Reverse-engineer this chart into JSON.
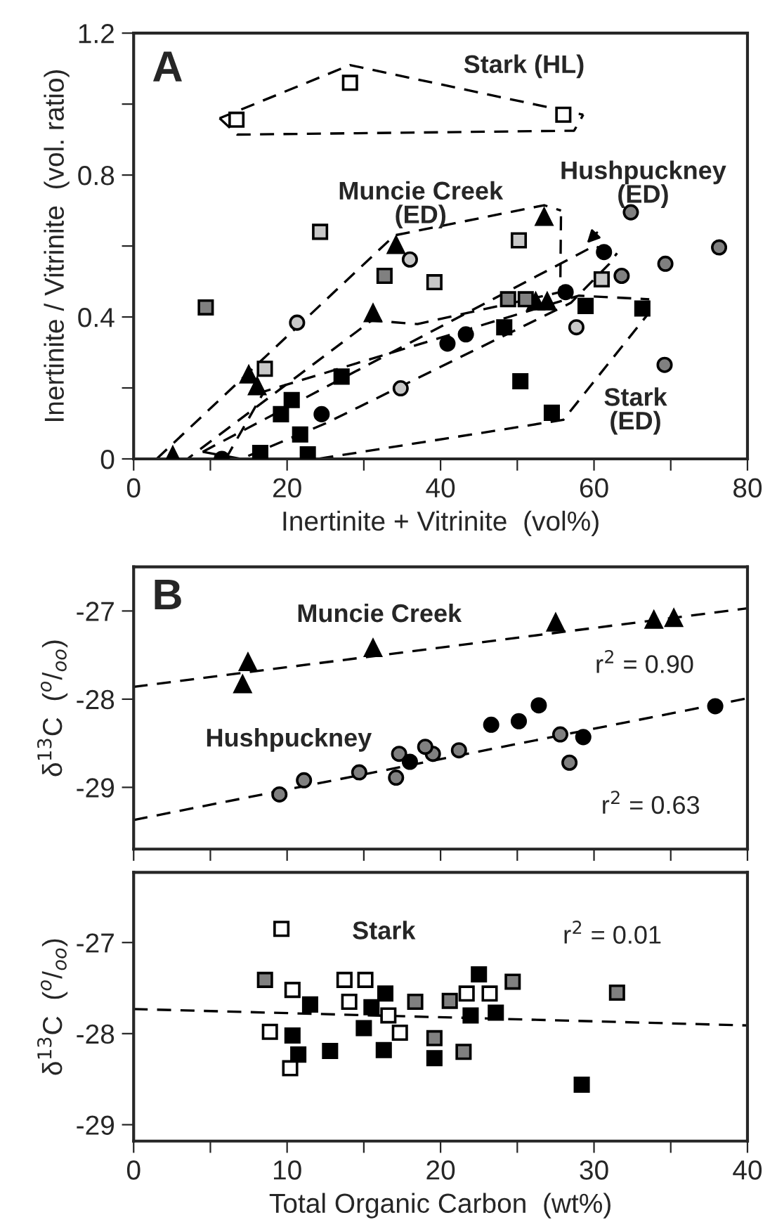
{
  "chart_data": [
    {
      "type": "scatter",
      "title": "A",
      "xlabel": "Inertinite + Vitrinite  (vol%)",
      "ylabel": "Inertinite / Vitrinite  (vol. ratio)",
      "xlim": [
        0,
        80
      ],
      "ylim": [
        0,
        1.2
      ],
      "xticks": [
        0,
        {
          "value": 10,
          "label": null
        },
        20,
        {
          "value": 30,
          "label": null
        },
        40,
        {
          "value": 50,
          "label": null
        },
        60,
        {
          "value": 70,
          "label": null
        },
        80
      ],
      "yticks": [
        0,
        {
          "value": 0.2,
          "label": null
        },
        0.4,
        {
          "value": 0.6,
          "label": null
        },
        0.8,
        {
          "value": 1.0,
          "label": null
        },
        1.2
      ],
      "series": [
        {
          "marker": "square",
          "color": "#ffffff",
          "x": [
            13.4,
            28.2,
            56.0
          ],
          "values": [
            0.956,
            1.06,
            0.97
          ]
        },
        {
          "marker": "square",
          "color": "#808080",
          "x": [
            9.4,
            32.7,
            48.8,
            51.1
          ],
          "values": [
            0.427,
            0.516,
            0.45,
            0.45
          ]
        },
        {
          "marker": "square",
          "color": "#c8c8c8",
          "x": [
            24.3,
            50.2,
            39.2,
            17.1,
            61.0
          ],
          "values": [
            0.64,
            0.616,
            0.498,
            0.254,
            0.506
          ]
        },
        {
          "marker": "circle",
          "color": "#c8c8c8",
          "x": [
            36.0,
            21.3,
            57.7,
            34.8
          ],
          "values": [
            0.562,
            0.384,
            0.371,
            0.199
          ]
        },
        {
          "marker": "triangle",
          "color": "#000000",
          "x": [
            53.5,
            34.2,
            31.2,
            15.0,
            16.1,
            53.9,
            52.4,
            5.1
          ],
          "values": [
            0.682,
            0.603,
            0.411,
            0.238,
            0.205,
            0.444,
            0.444,
            0.01
          ]
        },
        {
          "marker": "circle",
          "color": "#000000",
          "x": [
            61.3,
            56.3,
            40.9,
            43.3,
            24.5,
            11.5
          ],
          "values": [
            0.583,
            0.47,
            0.325,
            0.351,
            0.126,
            0.0
          ]
        },
        {
          "marker": "circle",
          "color": "#808080",
          "x": [
            64.8,
            76.3,
            69.3,
            63.6,
            69.2
          ],
          "values": [
            0.695,
            0.596,
            0.55,
            0.516,
            0.265
          ]
        },
        {
          "marker": "square",
          "color": "#000000",
          "x": [
            58.9,
            66.3,
            48.3,
            50.4,
            27.1,
            20.6,
            19.2,
            21.7,
            22.7,
            16.5,
            54.5
          ],
          "values": [
            0.431,
            0.424,
            0.371,
            0.219,
            0.232,
            0.166,
            0.126,
            0.069,
            0.013,
            0.017,
            0.13
          ]
        },
        {
          "type": "line",
          "line_style": "dashed",
          "color": "#000000",
          "x": [
            11.2,
            28.2,
            58.6
          ],
          "values": [
            0.96,
            1.11,
            0.97
          ]
        },
        {
          "type": "line",
          "line_style": "dashed",
          "color": "#000000",
          "x": [
            11.2,
            13.5,
            57.4,
            58.6
          ],
          "values": [
            0.96,
            0.914,
            0.925,
            0.97
          ]
        },
        {
          "type": "line",
          "line_style": "dashed",
          "color": "#000000",
          "x": [
            3,
            34,
            53.5,
            55.7
          ],
          "values": [
            0.0,
            0.63,
            0.715,
            0.7
          ]
        },
        {
          "type": "line",
          "line_style": "dashed",
          "color": "#000000",
          "x": [
            3,
            7,
            31,
            37,
            55.6,
            55.7
          ],
          "values": [
            0.0,
            0.0,
            0.39,
            0.38,
            0.47,
            0.7
          ]
        },
        {
          "type": "line",
          "line_style": "dashed",
          "color": "#000000",
          "x": [
            9,
            60,
            63
          ],
          "values": [
            0.02,
            0.6,
            0.58
          ]
        },
        {
          "type": "line",
          "line_style": "dashed",
          "color": "#000000",
          "x": [
            9,
            14,
            25,
            57,
            62,
            63
          ],
          "values": [
            0.02,
            0.0,
            0.1,
            0.44,
            0.55,
            0.58
          ]
        },
        {
          "type": "line",
          "line_style": "dashed",
          "color": "#000000",
          "x": [
            12,
            17,
            58,
            67.2
          ],
          "values": [
            0.0,
            0.19,
            0.46,
            0.45
          ]
        },
        {
          "type": "line",
          "line_style": "dashed",
          "color": "#000000",
          "x": [
            12,
            24,
            56,
            67.1,
            67.2
          ],
          "values": [
            0.0,
            0.0,
            0.11,
            0.41,
            0.45
          ]
        }
      ],
      "annotations": [
        "Stark (HL)",
        "Muncie Creek\n(ED)",
        "Hushpuckney\n(ED)",
        "Stark\n(ED)"
      ]
    },
    {
      "type": "scatter",
      "title": "B",
      "ylabel": "δ$^{13}$C  ($^{o}$/$_{oo}$)",
      "xlim": [
        0,
        40
      ],
      "ylim": [
        -29.7,
        -26.5
      ],
      "tick_labels": "y",
      "xticks": [
        0,
        5,
        10,
        15,
        20,
        25,
        30,
        35,
        40
      ],
      "yticks": [
        {
          "value": -27,
          "label": "-27"
        },
        {
          "value": -28,
          "label": "-28"
        },
        {
          "value": -29,
          "label": "-29"
        }
      ],
      "series": [
        {
          "marker": "triangle",
          "color": "#000000",
          "x": [
            7.45,
            7.1,
            15.6,
            27.5,
            33.9,
            35.2
          ],
          "values": [
            -27.58,
            -27.83,
            -27.42,
            -27.13,
            -27.1,
            -27.08
          ]
        },
        {
          "marker": "circle",
          "color": "#000000",
          "x": [
            23.3,
            25.1,
            26.4,
            29.3,
            37.9,
            18.0
          ],
          "values": [
            -28.29,
            -28.25,
            -28.07,
            -28.43,
            -28.08,
            -28.71
          ]
        },
        {
          "marker": "circle",
          "color": "#808080",
          "x": [
            9.5,
            11.1,
            14.7,
            17.1,
            28.4,
            17.3,
            19.5,
            21.2,
            19.0,
            27.8
          ],
          "values": [
            -29.08,
            -28.92,
            -28.83,
            -28.89,
            -28.72,
            -28.62,
            -28.62,
            -28.58,
            -28.54,
            -28.4
          ]
        },
        {
          "type": "line",
          "line_style": "dashed",
          "color": "#000000",
          "x": [
            0,
            40
          ],
          "values": [
            -27.86,
            -26.97
          ]
        },
        {
          "type": "line",
          "line_style": "dashed",
          "color": "#000000",
          "x": [
            0,
            40
          ],
          "values": [
            -29.37,
            -27.99
          ]
        }
      ],
      "annotations": [
        "Muncie Creek",
        "Hushpuckney",
        "r$^{2}$ = 0.90",
        "r$^{2}$ = 0.63"
      ]
    },
    {
      "type": "scatter",
      "xlabel": "Total Organic Carbon  (wt%)",
      "ylabel": "δ$^{13}$C  ($^{o}$/$_{oo}$)",
      "xlim": [
        0,
        40
      ],
      "ylim": [
        -29.18,
        -26.23
      ],
      "xticks": [
        0,
        {
          "value": 5,
          "label": null
        },
        10,
        {
          "value": 15,
          "label": null
        },
        20,
        {
          "value": 25,
          "label": null
        },
        30,
        {
          "value": 35,
          "label": null
        },
        40
      ],
      "yticks": [
        {
          "value": -27,
          "label": "-27"
        },
        {
          "value": -28,
          "label": "-28"
        },
        {
          "value": -29,
          "label": "-29"
        }
      ],
      "series": [
        {
          "marker": "square",
          "color": "#ffffff",
          "x": [
            9.63,
            10.35,
            8.88,
            10.2,
            13.74,
            15.1,
            14.05,
            16.6,
            17.35,
            21.7,
            23.2
          ],
          "values": [
            -26.85,
            -27.52,
            -27.98,
            -28.38,
            -27.41,
            -27.41,
            -27.65,
            -27.8,
            -27.99,
            -27.56,
            -27.56
          ]
        },
        {
          "marker": "square",
          "color": "#000000",
          "x": [
            10.35,
            10.73,
            11.5,
            12.8,
            15.0,
            15.5,
            16.4,
            16.3,
            19.6,
            22.5,
            21.96,
            23.6,
            29.2
          ],
          "values": [
            -28.02,
            -28.23,
            -27.68,
            -28.19,
            -27.94,
            -27.71,
            -27.56,
            -28.18,
            -28.27,
            -27.35,
            -27.8,
            -27.77,
            -28.56
          ]
        },
        {
          "marker": "square",
          "color": "#808080",
          "x": [
            8.56,
            18.35,
            19.6,
            20.6,
            21.5,
            24.7,
            31.5
          ],
          "values": [
            -27.41,
            -27.65,
            -28.05,
            -27.64,
            -28.2,
            -27.43,
            -27.55
          ]
        },
        {
          "type": "line",
          "line_style": "dashed",
          "color": "#000000",
          "x": [
            0,
            40
          ],
          "values": [
            -27.73,
            -27.91
          ]
        }
      ],
      "annotations": [
        "Stark",
        "r$^{2}$ = 0.01"
      ]
    }
  ]
}
